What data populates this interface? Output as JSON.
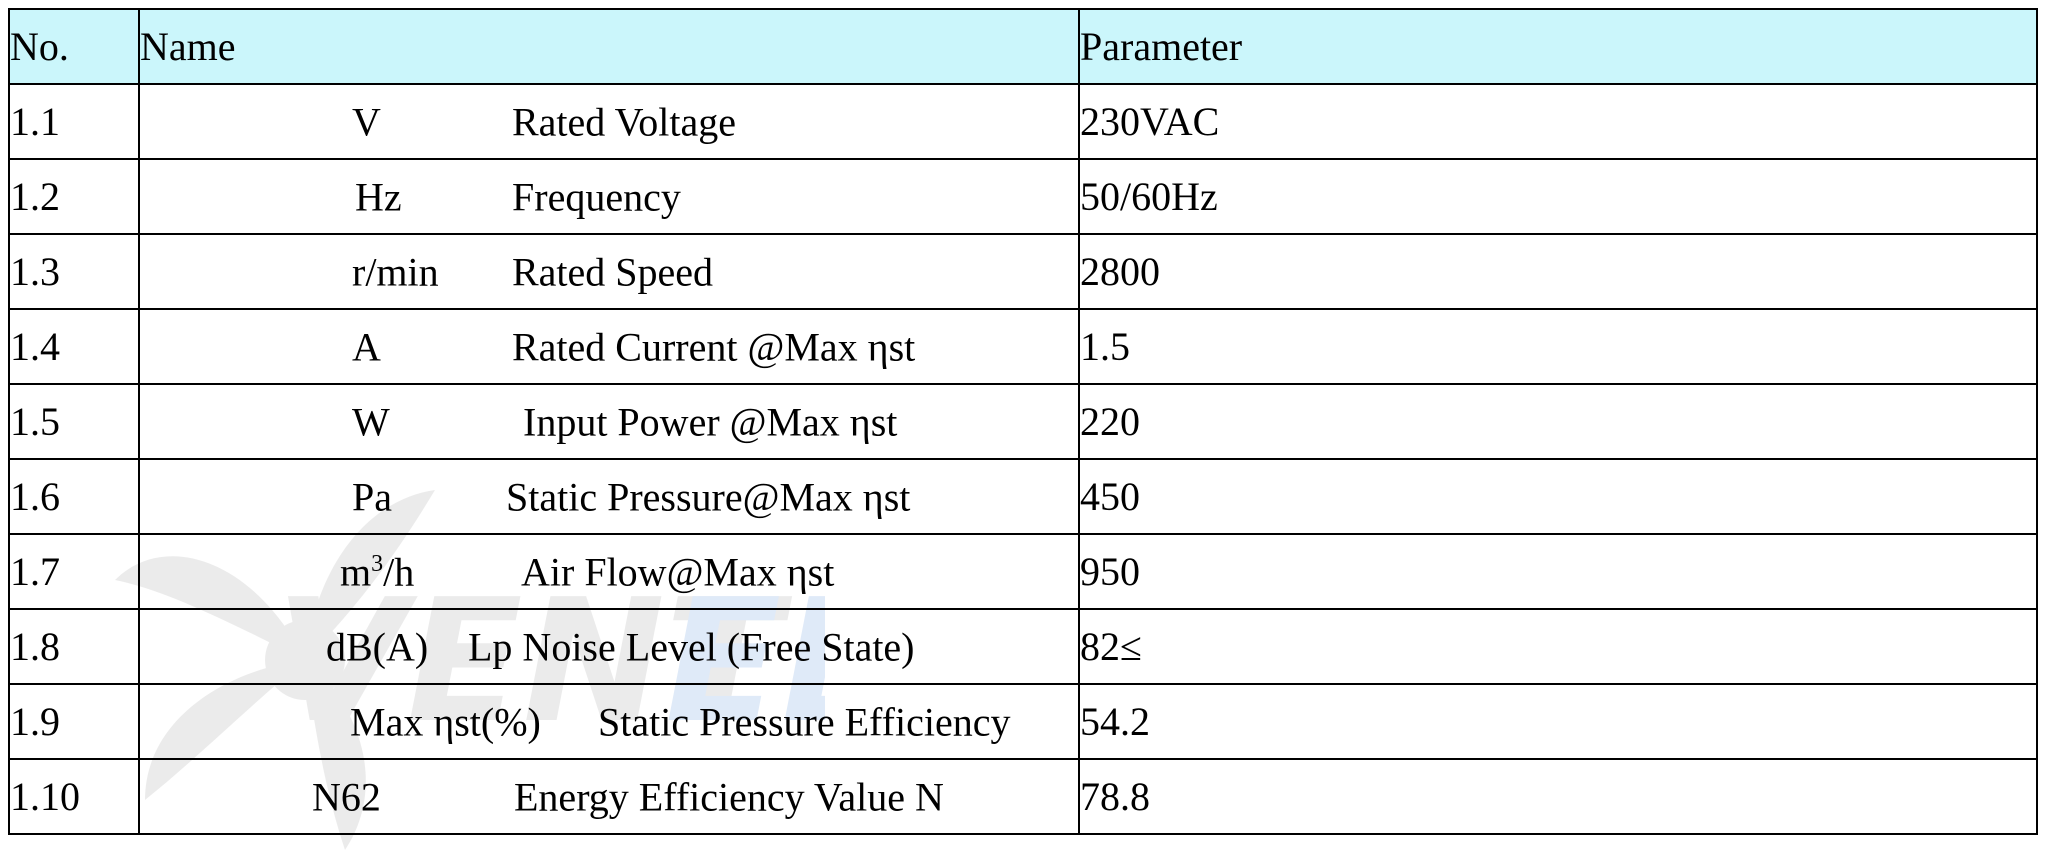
{
  "header": {
    "no": "No.",
    "name": "Name",
    "parameter": "Parameter"
  },
  "rows": [
    {
      "no": "1.1",
      "symbol": "V",
      "label": "Rated Voltage",
      "value": "230VAC"
    },
    {
      "no": "1.2",
      "symbol": "Hz",
      "label": "Frequency",
      "value": "50/60Hz"
    },
    {
      "no": "1.3",
      "symbol": "r/min",
      "label": "Rated Speed",
      "value": "2800"
    },
    {
      "no": "1.4",
      "symbol": "A",
      "label": "Rated Current @Max ηst",
      "value": "1.5"
    },
    {
      "no": "1.5",
      "symbol": "W",
      "label": "Input Power @Max ηst",
      "value": "220"
    },
    {
      "no": "1.6",
      "symbol": "Pa",
      "label": "Static Pressure@Max ηst",
      "value": "450"
    },
    {
      "no": "1.7",
      "symbol_base": "m",
      "symbol_sup": "3",
      "symbol_tail": "/h",
      "label": "Air Flow@Max ηst",
      "value": "950"
    },
    {
      "no": "1.8",
      "symbol": "dB(A)",
      "label": "Lp Noise Level (Free State)",
      "value": "82≤"
    },
    {
      "no": "1.9",
      "symbol": "Max ηst(%)",
      "label": "Static Pressure Efficiency",
      "value": "54.2"
    },
    {
      "no": "1.10",
      "symbol": "N62",
      "label": "Energy Efficiency Value N",
      "value": "78.8"
    }
  ],
  "watermark": {
    "text": "VENTEL",
    "color_primary": "#8a8a8a",
    "color_accent": "#3f7fd6"
  }
}
